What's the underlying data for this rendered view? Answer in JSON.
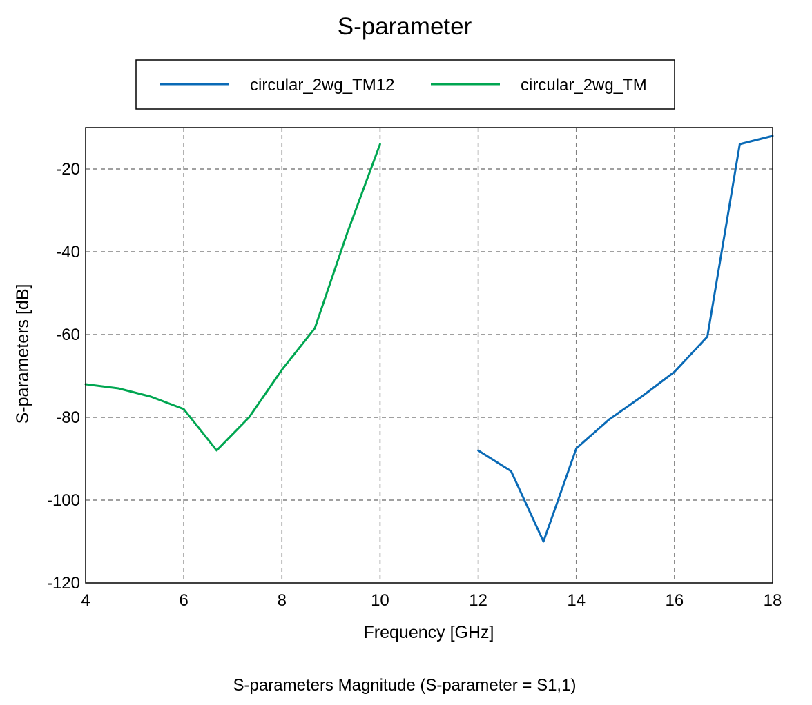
{
  "chart_data": {
    "type": "line",
    "title": "S-parameter",
    "xlabel": "Frequency [GHz]",
    "ylabel": "S-parameters [dB]",
    "caption": "S-parameters Magnitude (S-parameter = S1,1)",
    "xlim": [
      4,
      18
    ],
    "ylim": [
      -120,
      -10
    ],
    "xticks": [
      4,
      6,
      8,
      10,
      12,
      14,
      16,
      18
    ],
    "yticks": [
      -120,
      -100,
      -80,
      -60,
      -40,
      -20
    ],
    "grid": true,
    "legend": {
      "placement": "top",
      "entries": [
        "circular_2wg_TM12",
        "circular_2wg_TM"
      ]
    },
    "series": [
      {
        "name": "circular_2wg_TM12",
        "color": "#0a6ab6",
        "x": [
          12.0,
          12.67,
          13.33,
          14.0,
          14.67,
          15.33,
          16.0,
          16.67,
          17.33,
          18.0
        ],
        "y": [
          -88,
          -93,
          -110,
          -87.5,
          -80.5,
          -75,
          -69,
          -60.5,
          -14,
          -12
        ]
      },
      {
        "name": "circular_2wg_TM",
        "color": "#00a651",
        "x": [
          4.0,
          4.67,
          5.33,
          6.0,
          6.67,
          7.33,
          8.0,
          8.67,
          9.33,
          10.0
        ],
        "y": [
          -72,
          -73,
          -75,
          -78,
          -88,
          -80,
          -68.5,
          -58.5,
          -35.5,
          -14
        ]
      }
    ]
  }
}
